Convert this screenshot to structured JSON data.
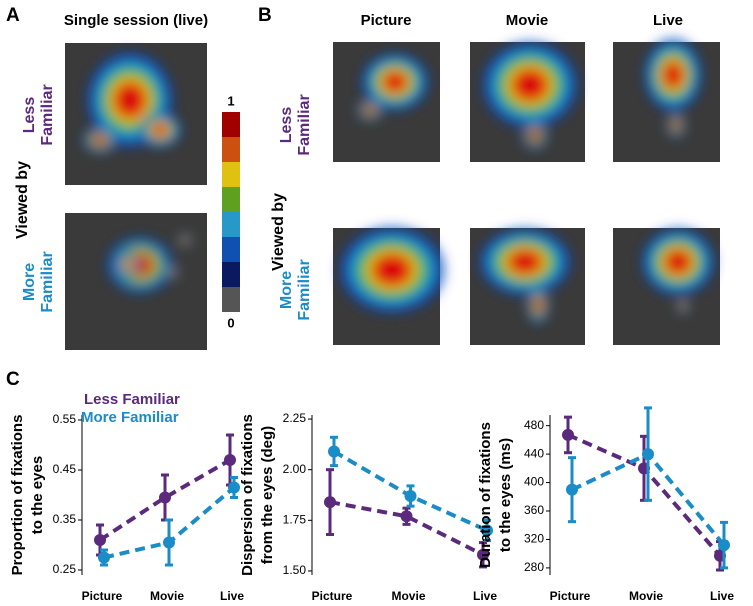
{
  "figure": {
    "panel_labels": [
      "A",
      "B",
      "C"
    ],
    "panel_a": {
      "title": "Single session (live)",
      "viewed_by": "Viewed by",
      "rows": [
        [
          "Less",
          "Familiar"
        ],
        [
          "More",
          "Familiar"
        ]
      ],
      "colorbar": {
        "max": "1",
        "min": "0"
      }
    },
    "panel_b": {
      "columns": [
        "Picture",
        "Movie",
        "Live"
      ],
      "viewed_by": "Viewed by",
      "rows": [
        [
          "Less",
          "Familiar"
        ],
        [
          "More",
          "Familiar"
        ]
      ]
    }
  },
  "chart_data": [
    {
      "type": "line",
      "ylabel": [
        "Proportion of fixations",
        "to the eyes"
      ],
      "categories": [
        "Picture",
        "Movie",
        "Live"
      ],
      "ylim": [
        0.24,
        0.56
      ],
      "yticks": [
        0.25,
        0.35,
        0.45,
        0.55
      ],
      "series": [
        {
          "name": "Less Familiar",
          "color": "#5b2a7c",
          "values": [
            0.31,
            0.395,
            0.47
          ],
          "errors": [
            0.03,
            0.045,
            0.05
          ]
        },
        {
          "name": "More Familiar",
          "color": "#1a8cc8",
          "values": [
            0.275,
            0.305,
            0.415
          ],
          "errors": [
            0.015,
            0.045,
            0.02
          ]
        }
      ]
    },
    {
      "type": "line",
      "ylabel": [
        "Dispersion of fixations",
        "from the eyes (deg)"
      ],
      "categories": [
        "Picture",
        "Movie",
        "Live"
      ],
      "ylim": [
        1.48,
        2.27
      ],
      "yticks": [
        {
          "value": 1.5,
          "label": "1.50"
        },
        {
          "value": 1.75,
          "label": "1.75"
        },
        {
          "value": 2,
          "label": "2.00"
        },
        {
          "value": 2.25,
          "label": "2.25"
        }
      ],
      "series": [
        {
          "color": "#5b2a7c",
          "values": [
            1.84,
            1.77,
            1.58
          ],
          "errors": [
            0.16,
            0.04,
            0.06
          ]
        },
        {
          "color": "#1a8cc8",
          "values": [
            2.09,
            1.87,
            1.7
          ],
          "errors": [
            0.07,
            0.05,
            0.05
          ]
        }
      ]
    },
    {
      "type": "line",
      "ylabel": [
        "Duration of fixations",
        "to the eyes (ms)"
      ],
      "categories": [
        "Picture",
        "Movie",
        "Live"
      ],
      "ylim": [
        270,
        495
      ],
      "yticks": [
        280,
        320,
        360,
        400,
        440,
        480
      ],
      "series": [
        {
          "color": "#5b2a7c",
          "values": [
            467,
            420,
            297
          ],
          "errors": [
            25,
            45,
            20
          ]
        },
        {
          "color": "#1a8cc8",
          "values": [
            390,
            440,
            312
          ],
          "errors": [
            45,
            65,
            32
          ]
        }
      ]
    }
  ]
}
